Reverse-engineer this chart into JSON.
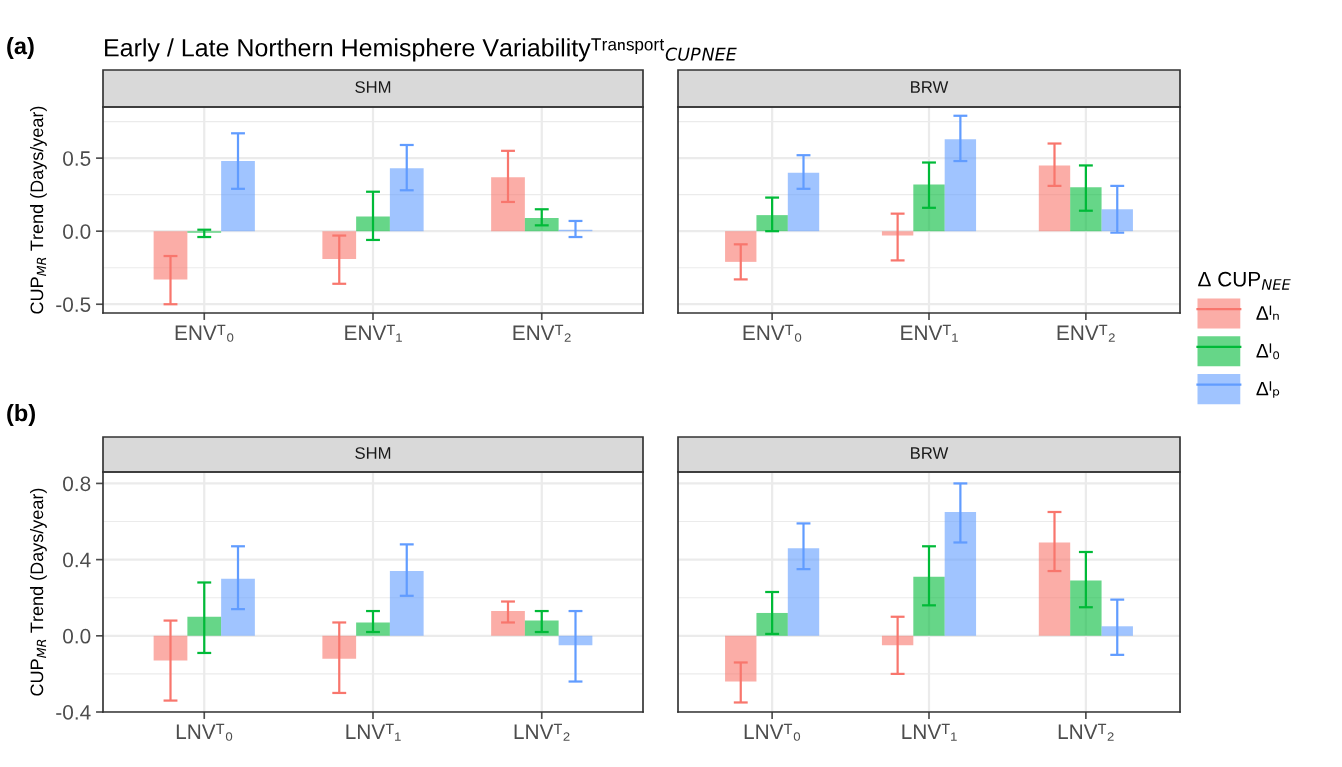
{
  "chart_data": [
    {
      "type": "bar",
      "title": "SHM",
      "ylabel": "CUP$_{MR}$ Trend (Days/year)",
      "annotations": [
        "(a)",
        "Early / Late Northern Hemisphere Variabilityᵀʳᵃⁿˢᵖᵒʳᵗ$_{CUP}$$_{NEE}$"
      ],
      "categories": [
        "ENVᵀ₀",
        "ENVᵀ₁",
        "ENVᵀ₂"
      ],
      "ylim": [
        -0.56,
        0.85
      ],
      "yticks": [
        {
          "value": -0.5,
          "label": "-0.5"
        },
        {
          "value": 0,
          "label": "0.0"
        },
        0.5
      ],
      "grid": true,
      "series": [
        {
          "color": "#f8766d",
          "values": [
            -0.33,
            -0.19,
            0.37
          ],
          "errors": [
            [
              -0.5,
              -0.17
            ],
            [
              -0.36,
              -0.03
            ],
            [
              0.2,
              0.55
            ]
          ]
        },
        {
          "color": "#00ba38",
          "values": [
            -0.01,
            0.1,
            0.09
          ],
          "errors": [
            [
              -0.04,
              0.01
            ],
            [
              -0.06,
              0.27
            ],
            [
              0.04,
              0.15
            ]
          ]
        },
        {
          "color": "#619cff",
          "values": [
            0.48,
            0.43,
            0.01
          ],
          "errors": [
            [
              0.29,
              0.67
            ],
            [
              0.28,
              0.59
            ],
            [
              -0.04,
              0.07
            ]
          ]
        }
      ]
    },
    {
      "type": "bar",
      "title": "BRW",
      "legend": "right",
      "legend_title": "Δ CUP$_{NEE}$",
      "tick_labels": "x",
      "categories": [
        "ENVᵀ₀",
        "ENVᵀ₁",
        "ENVᵀ₂"
      ],
      "ylim": [
        -0.56,
        0.85
      ],
      "yticks": [
        -0.5,
        0,
        0.5
      ],
      "grid": true,
      "series": [
        {
          "name": "Δᴵₙ",
          "color": "#f8766d",
          "values": [
            -0.21,
            -0.03,
            0.45
          ],
          "errors": [
            [
              -0.33,
              -0.09
            ],
            [
              -0.2,
              0.12
            ],
            [
              0.31,
              0.6
            ]
          ]
        },
        {
          "name": "Δᴵ₀",
          "color": "#00ba38",
          "values": [
            0.11,
            0.32,
            0.3
          ],
          "errors": [
            [
              0.0,
              0.23
            ],
            [
              0.16,
              0.47
            ],
            [
              0.14,
              0.45
            ]
          ]
        },
        {
          "name": "Δᴵₚ",
          "color": "#619cff",
          "values": [
            0.4,
            0.63,
            0.15
          ],
          "errors": [
            [
              0.29,
              0.52
            ],
            [
              0.48,
              0.79
            ],
            [
              -0.01,
              0.31
            ]
          ]
        }
      ]
    },
    {
      "type": "bar",
      "title": "SHM",
      "ylabel": "CUP$_{MR}$ Trend (Days/year)",
      "annotations": [
        "(b)"
      ],
      "categories": [
        "LNVᵀ₀",
        "LNVᵀ₁",
        "LNVᵀ₂"
      ],
      "ylim": [
        -0.4,
        0.86
      ],
      "yticks": [
        {
          "value": -0.4,
          "label": "-0.4"
        },
        {
          "value": 0,
          "label": "0.0"
        },
        0.4,
        0.8
      ],
      "grid": true,
      "series": [
        {
          "color": "#f8766d",
          "values": [
            -0.13,
            -0.12,
            0.13
          ],
          "errors": [
            [
              -0.34,
              0.08
            ],
            [
              -0.3,
              0.07
            ],
            [
              0.07,
              0.18
            ]
          ]
        },
        {
          "color": "#00ba38",
          "values": [
            0.1,
            0.07,
            0.08
          ],
          "errors": [
            [
              -0.09,
              0.28
            ],
            [
              0.02,
              0.13
            ],
            [
              0.02,
              0.13
            ]
          ]
        },
        {
          "color": "#619cff",
          "values": [
            0.3,
            0.34,
            -0.05
          ],
          "errors": [
            [
              0.14,
              0.47
            ],
            [
              0.21,
              0.48
            ],
            [
              -0.24,
              0.13
            ]
          ]
        }
      ]
    },
    {
      "type": "bar",
      "title": "BRW",
      "tick_labels": "x",
      "categories": [
        "LNVᵀ₀",
        "LNVᵀ₁",
        "LNVᵀ₂"
      ],
      "ylim": [
        -0.4,
        0.86
      ],
      "yticks": [
        -0.4,
        0,
        0.4,
        0.8
      ],
      "grid": true,
      "series": [
        {
          "color": "#f8766d",
          "values": [
            -0.24,
            -0.05,
            0.49
          ],
          "errors": [
            [
              -0.35,
              -0.14
            ],
            [
              -0.2,
              0.1
            ],
            [
              0.34,
              0.65
            ]
          ]
        },
        {
          "color": "#00ba38",
          "values": [
            0.12,
            0.31,
            0.29
          ],
          "errors": [
            [
              0.01,
              0.23
            ],
            [
              0.16,
              0.47
            ],
            [
              0.15,
              0.44
            ]
          ]
        },
        {
          "color": "#619cff",
          "values": [
            0.46,
            0.65,
            0.05
          ],
          "errors": [
            [
              0.35,
              0.59
            ],
            [
              0.49,
              0.8
            ],
            [
              -0.1,
              0.19
            ]
          ]
        }
      ]
    }
  ]
}
